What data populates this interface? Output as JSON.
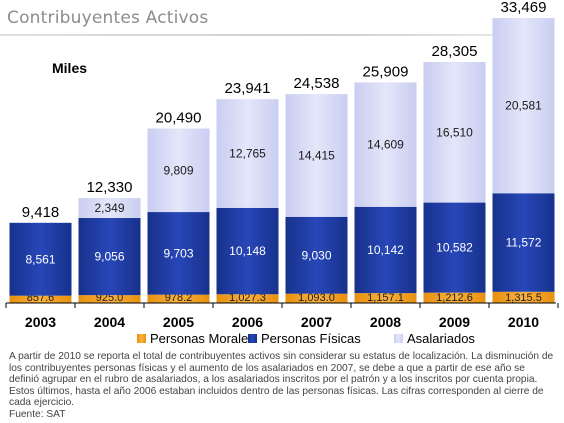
{
  "page": {
    "title": "Contribuyentes Activos"
  },
  "chart_data": {
    "type": "bar",
    "stacked": true,
    "unit_label": "Miles",
    "categories": [
      "2003",
      "2004",
      "2005",
      "2006",
      "2007",
      "2008",
      "2009",
      "2010"
    ],
    "series": [
      {
        "name": "Personas Morales",
        "color": "#f5a623",
        "values": [
          857.6,
          925.0,
          978.2,
          1027.3,
          1093.0,
          1157.1,
          1212.6,
          1315.5
        ],
        "labels": [
          "857.6",
          "925.0",
          "978.2",
          "1,027.3",
          "1,093.0",
          "1,157.1",
          "1,212.6",
          "1,315.5"
        ]
      },
      {
        "name": "Personas Físicas",
        "color": "#1f3fa8",
        "values": [
          8561,
          9056,
          9703,
          10148,
          9030,
          10142,
          10582,
          11572
        ],
        "labels": [
          "8,561",
          "9,056",
          "9,703",
          "10,148",
          "9,030",
          "10,142",
          "10,582",
          "11,572"
        ]
      },
      {
        "name": "Asalariados",
        "color": "#d7daf6",
        "values": [
          0,
          2349,
          9809,
          12765,
          14415,
          14609,
          16510,
          20581
        ],
        "labels": [
          "",
          "2,349",
          "9,809",
          "12,765",
          "14,415",
          "14,609",
          "16,510",
          "20,581"
        ]
      }
    ],
    "totals": [
      "9,418",
      "12,330",
      "20,490",
      "23,941",
      "24,538",
      "25,909",
      "28,305",
      "33,469"
    ],
    "total_values": [
      9418,
      12330,
      20490,
      23941,
      24538,
      25909,
      28305,
      33469
    ],
    "ylim": [
      0,
      35000
    ],
    "legend": "bottom",
    "grid": false
  },
  "footnote": {
    "text": "A partir de 2010 se reporta el total de contribuyentes activos sin considerar su estatus de localización. La disminución de los contribuyentes personas físicas y el aumento de los asalariados en 2007, se debe a que a partir de ese año se definió agrupar en el rubro de asalariados, a los asalariados inscritos por el patrón y a los inscritos por cuenta propia. Estos últimos, hasta el año 2006 estaban incluidos dentro de las personas físicas.  Las cifras  corresponden al cierre de cada ejercicio.",
    "source": "Fuente: SAT"
  }
}
